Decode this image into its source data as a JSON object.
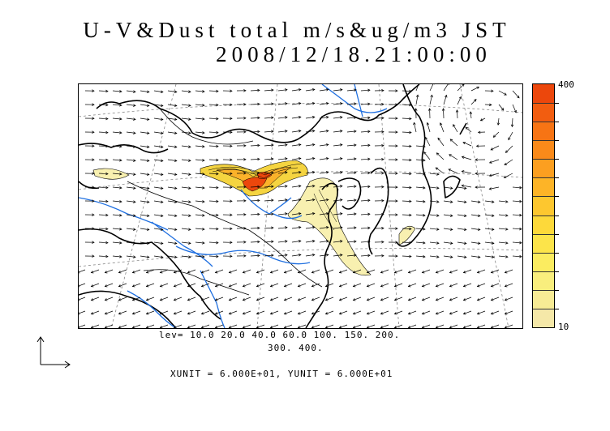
{
  "header": {
    "title": "U-V&Dust total m/s&ug/m3 JST",
    "datetime": "2008/12/18.21:00:00"
  },
  "colorbar": {
    "max_label": "400",
    "min_label": "10",
    "colors": [
      "#f5e8a8",
      "#f7eb95",
      "#f9ee7d",
      "#fbec60",
      "#fce44a",
      "#fdd93a",
      "#fdc72f",
      "#fdb427",
      "#fc9f20",
      "#fa8a1a",
      "#f77414",
      "#f25d10",
      "#ec470c"
    ]
  },
  "legend": {
    "levels_line1": "lev= 10.0 20.0 40.0 60.0 100. 150. 200.",
    "levels_line2": "300. 400.",
    "units": "XUNIT = 6.000E+01, YUNIT = 6.000E+01"
  },
  "map": {
    "coastline_color": "#000000",
    "river_color": "#1f6fe0",
    "dust_low_color": "#f8f0b0",
    "dust_mid_color": "#f5d440",
    "dust_high_color": "#ec470c"
  }
}
